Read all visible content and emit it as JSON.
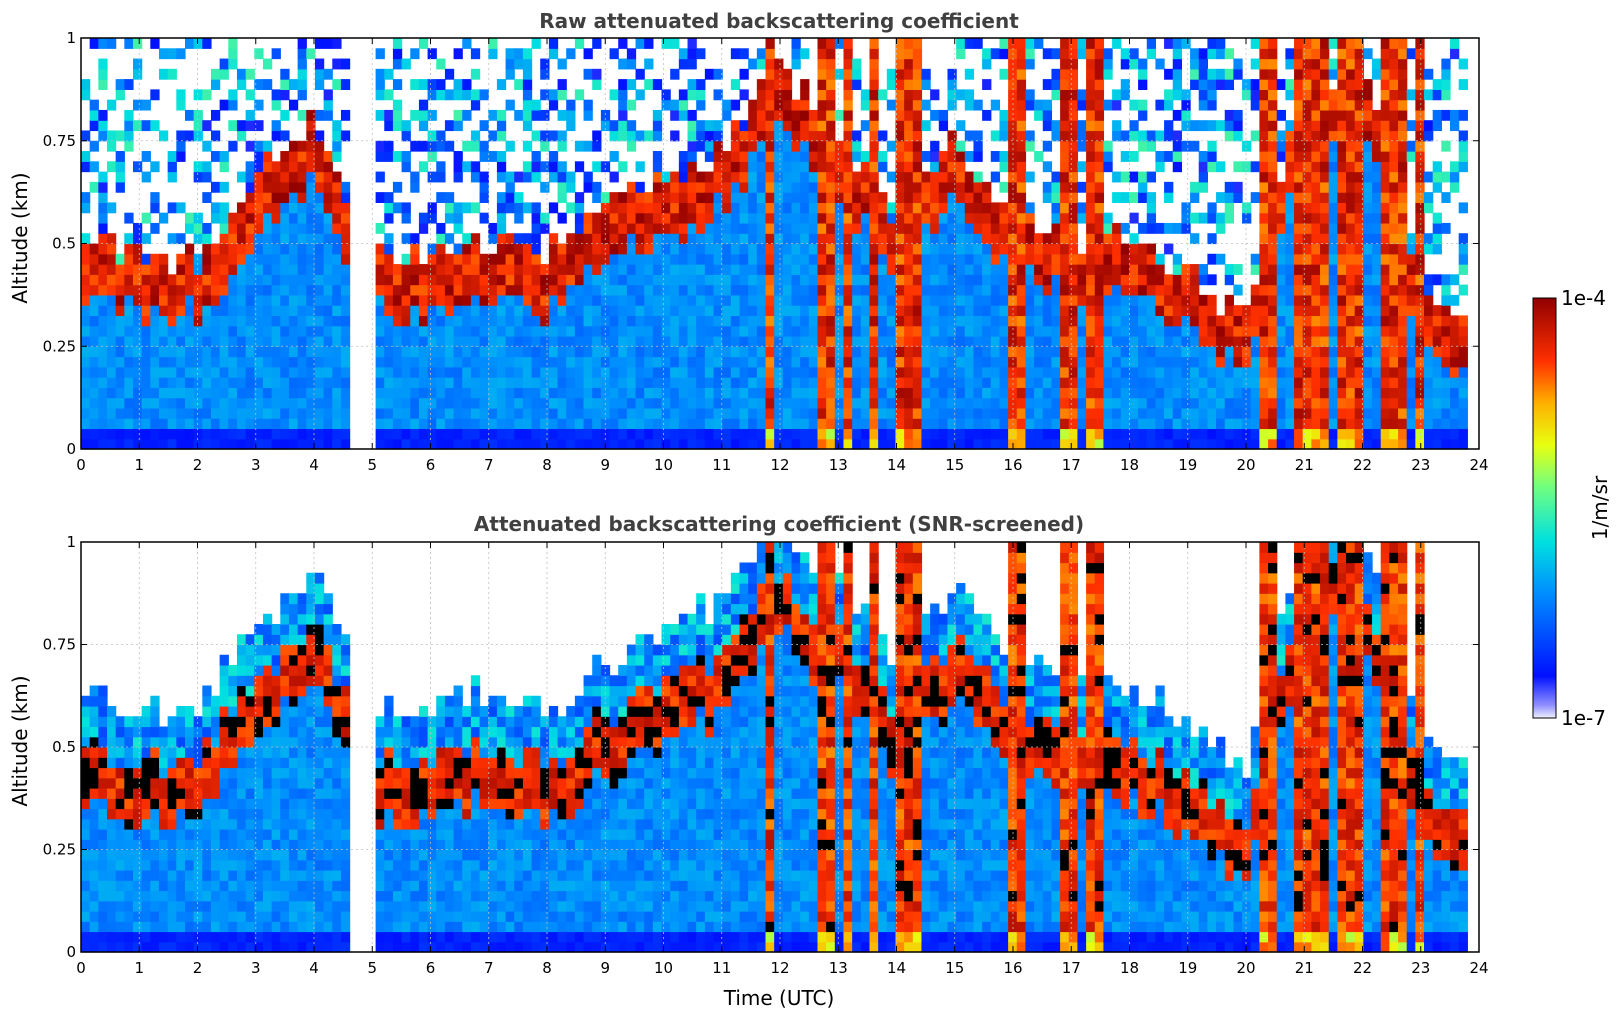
{
  "chart_data": [
    {
      "type": "heatmap",
      "title": "Raw attenuated backscattering coefficient",
      "xlabel": "",
      "ylabel": "Altitude (km)",
      "xlim": [
        0,
        24
      ],
      "ylim": [
        0,
        1
      ],
      "x_ticks": [
        "0",
        "1",
        "2",
        "3",
        "4",
        "5",
        "6",
        "7",
        "8",
        "9",
        "10",
        "11",
        "12",
        "13",
        "14",
        "15",
        "16",
        "17",
        "18",
        "19",
        "20",
        "21",
        "22",
        "23",
        "24"
      ],
      "y_ticks": [
        "0",
        "0.25",
        "0.5",
        "0.75",
        "1"
      ],
      "grid": true,
      "data_gap_hours": [
        4.6,
        5.05
      ],
      "cloud_layer_top_km": [
        [
          0,
          0.5
        ],
        [
          1,
          0.45
        ],
        [
          2,
          0.45
        ],
        [
          3,
          0.65
        ],
        [
          4,
          0.8
        ],
        [
          5,
          0.45
        ],
        [
          6,
          0.45
        ],
        [
          7,
          0.5
        ],
        [
          8,
          0.45
        ],
        [
          9,
          0.55
        ],
        [
          10,
          0.65
        ],
        [
          11,
          0.7
        ],
        [
          12,
          0.9
        ],
        [
          13,
          0.75
        ],
        [
          14,
          0.55
        ],
        [
          15,
          0.75
        ],
        [
          16,
          0.55
        ],
        [
          17,
          0.5
        ],
        [
          18,
          0.5
        ],
        [
          19,
          0.4
        ],
        [
          20,
          0.3
        ],
        [
          21,
          0.9
        ],
        [
          22,
          0.9
        ],
        [
          23,
          0.4
        ],
        [
          23.8,
          0.3
        ]
      ]
    },
    {
      "type": "heatmap",
      "title": "Attenuated backscattering coefficient (SNR-screened)",
      "xlabel": "Time (UTC)",
      "ylabel": "Altitude (km)",
      "xlim": [
        0,
        24
      ],
      "ylim": [
        0,
        1
      ],
      "x_ticks": [
        "0",
        "1",
        "2",
        "3",
        "4",
        "5",
        "6",
        "7",
        "8",
        "9",
        "10",
        "11",
        "12",
        "13",
        "14",
        "15",
        "16",
        "17",
        "18",
        "19",
        "20",
        "21",
        "22",
        "23",
        "24"
      ],
      "y_ticks": [
        "0",
        "0.25",
        "0.5",
        "0.75",
        "1"
      ],
      "grid": true,
      "data_gap_hours": [
        4.6,
        5.05
      ]
    }
  ],
  "colorbar": {
    "label": "1/m/sr",
    "max_label": "1e-4",
    "min_label": "1e-7",
    "scale": "log",
    "range": [
      1e-07,
      0.0001
    ],
    "colormap": "jet"
  }
}
